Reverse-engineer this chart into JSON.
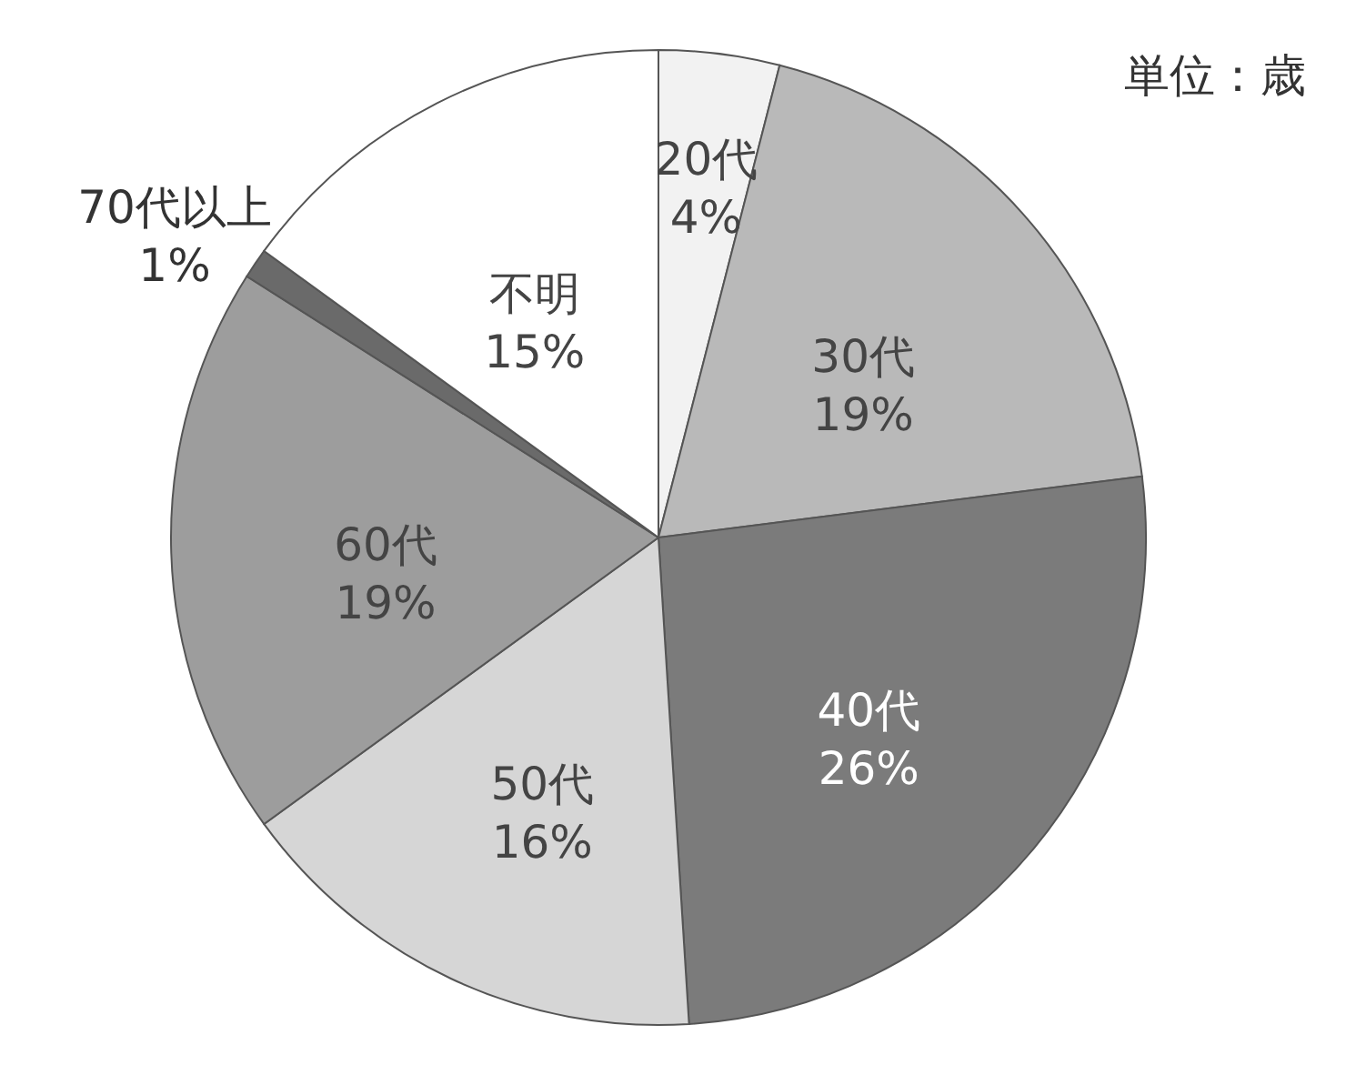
{
  "chart_data": {
    "type": "pie",
    "categories": [
      "20代",
      "30代",
      "40代",
      "50代",
      "60代",
      "70代以上",
      "不明"
    ],
    "values": [
      4,
      19,
      26,
      16,
      19,
      1,
      15
    ],
    "value_labels": [
      "4%",
      "19%",
      "26%",
      "16%",
      "19%",
      "1%",
      "15%"
    ],
    "colors": [
      "#f2f2f2",
      "#b9b9b9",
      "#7b7b7b",
      "#d6d6d6",
      "#9d9d9d",
      "#6a6a6a",
      "#ffffff"
    ],
    "annotations": [
      "単位：歳"
    ]
  }
}
